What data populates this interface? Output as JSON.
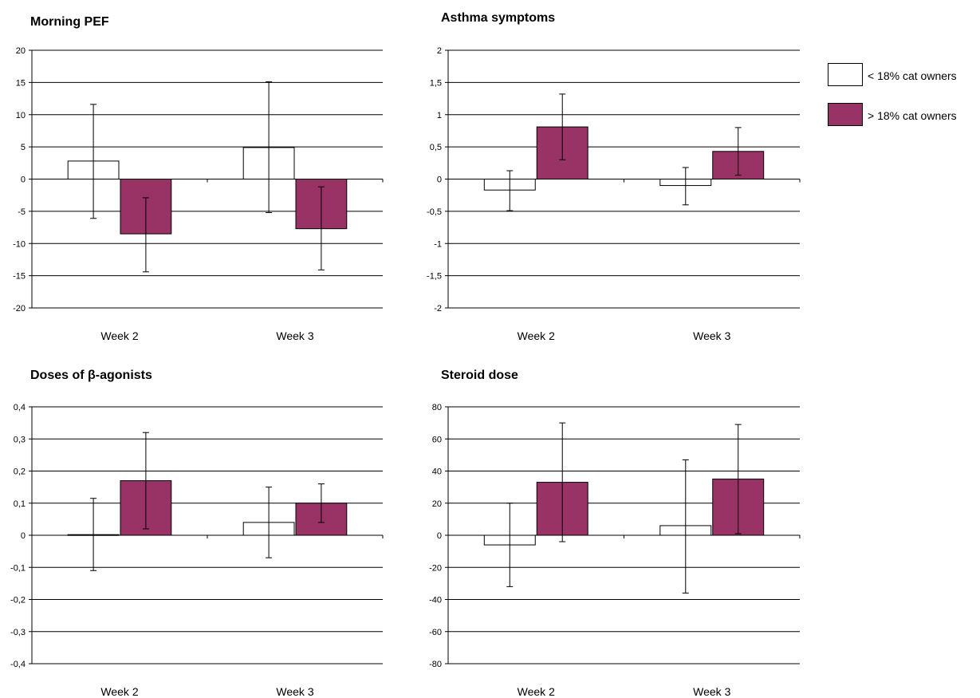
{
  "legend": [
    {
      "label": "< 18% cat owners",
      "color": "#ffffff"
    },
    {
      "label": "> 18% cat owners",
      "color": "#993366"
    }
  ],
  "colors": {
    "low_owner_bar": "#ffffff",
    "high_owner_bar": "#993366",
    "grid": "#000000"
  },
  "chart_data": [
    {
      "type": "bar",
      "title": "Morning PEF",
      "categories": [
        "Week 2",
        "Week 3"
      ],
      "ylim": [
        -20,
        20
      ],
      "yticks": [
        20,
        15,
        10,
        5,
        0,
        -5,
        -10,
        -15,
        -20
      ],
      "ytick_labels": [
        "20",
        "15",
        "10",
        "5",
        "0",
        "-5",
        "-10",
        "-15",
        "-20"
      ],
      "grid": true,
      "series": [
        {
          "name": "< 18% cat owners",
          "values": [
            2.8,
            4.9
          ],
          "err_low": [
            -6.1,
            -5.2
          ],
          "err_high": [
            11.6,
            15.1
          ]
        },
        {
          "name": "> 18% cat owners",
          "values": [
            -8.5,
            -7.7
          ],
          "err_low": [
            -14.4,
            -14.1
          ],
          "err_high": [
            -2.9,
            -1.2
          ]
        }
      ]
    },
    {
      "type": "bar",
      "title": "Asthma symptoms",
      "categories": [
        "Week 2",
        "Week 3"
      ],
      "ylim": [
        -2,
        2
      ],
      "yticks": [
        2,
        1.5,
        1,
        0.5,
        0,
        -0.5,
        -1,
        -1.5,
        -2
      ],
      "ytick_labels": [
        "2",
        "1,5",
        "1",
        "0,5",
        "0",
        "-0,5",
        "-1",
        "-1,5",
        "-2"
      ],
      "grid": true,
      "series": [
        {
          "name": "< 18% cat owners",
          "values": [
            -0.17,
            -0.1
          ],
          "err_low": [
            -0.49,
            -0.4
          ],
          "err_high": [
            0.13,
            0.18
          ]
        },
        {
          "name": "> 18% cat owners",
          "values": [
            0.81,
            0.43
          ],
          "err_low": [
            0.3,
            0.06
          ],
          "err_high": [
            1.32,
            0.8
          ]
        }
      ]
    },
    {
      "type": "bar",
      "title": "Doses of β-agonists",
      "categories": [
        "Week 2",
        "Week 3"
      ],
      "ylim": [
        -0.4,
        0.4
      ],
      "yticks": [
        0.4,
        0.3,
        0.2,
        0.1,
        0,
        -0.1,
        -0.2,
        -0.3,
        -0.4
      ],
      "ytick_labels": [
        "0,4",
        "0,3",
        "0,2",
        "0,1",
        "0",
        "-0,1",
        "-0,2",
        "-0,3",
        "-0,4"
      ],
      "grid": true,
      "series": [
        {
          "name": "< 18% cat owners",
          "values": [
            0.002,
            0.04
          ],
          "err_low": [
            -0.11,
            -0.07
          ],
          "err_high": [
            0.115,
            0.15
          ]
        },
        {
          "name": "> 18% cat owners",
          "values": [
            0.17,
            0.1
          ],
          "err_low": [
            0.02,
            0.04
          ],
          "err_high": [
            0.32,
            0.16
          ]
        }
      ]
    },
    {
      "type": "bar",
      "title": "Steroid dose",
      "categories": [
        "Week 2",
        "Week 3"
      ],
      "ylim": [
        -80,
        80
      ],
      "yticks": [
        80,
        60,
        40,
        20,
        0,
        -20,
        -40,
        -60,
        -80
      ],
      "ytick_labels": [
        "80",
        "60",
        "40",
        "20",
        "0",
        "-20",
        "-40",
        "-60",
        "-80"
      ],
      "grid": true,
      "series": [
        {
          "name": "< 18% cat owners",
          "values": [
            -6,
            6
          ],
          "err_low": [
            -32,
            -36
          ],
          "err_high": [
            20,
            47
          ]
        },
        {
          "name": "> 18% cat owners",
          "values": [
            33,
            35
          ],
          "err_low": [
            -4,
            1
          ],
          "err_high": [
            70,
            69
          ]
        }
      ]
    }
  ]
}
